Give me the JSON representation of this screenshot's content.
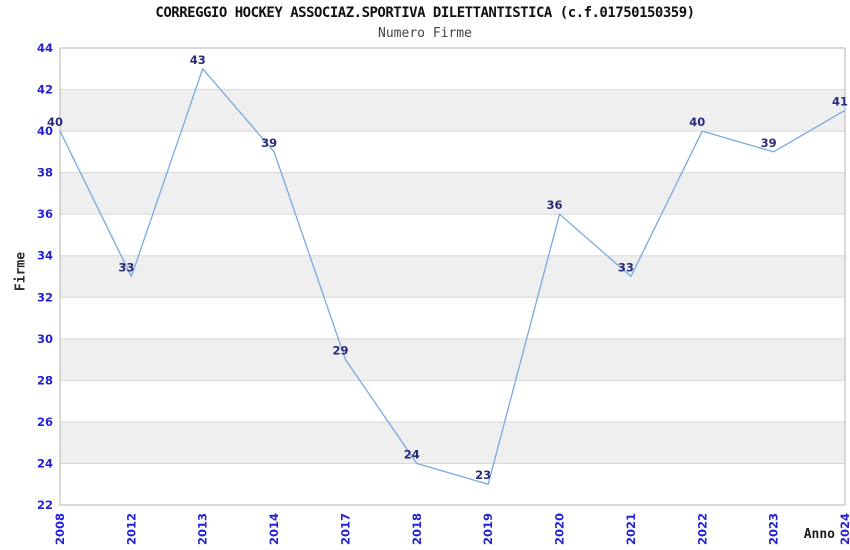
{
  "chart_data": {
    "type": "line",
    "title": "CORREGGIO HOCKEY ASSOCIAZ.SPORTIVA DILETTANTISTICA (c.f.01750150359)",
    "subtitle": "Numero Firme",
    "xlabel": "Anno",
    "ylabel": "Firme",
    "categories": [
      "2008",
      "2012",
      "2013",
      "2014",
      "2017",
      "2018",
      "2019",
      "2020",
      "2021",
      "2022",
      "2023",
      "2024"
    ],
    "values": [
      40,
      33,
      43,
      39,
      29,
      24,
      23,
      36,
      33,
      40,
      39,
      41
    ],
    "ylim": [
      22,
      44
    ],
    "ytick_step": 2,
    "grid": true,
    "legend": "none",
    "colors": {
      "line": "#7aa9e2",
      "band_white": "#ffffff",
      "band_gray": "#efefef",
      "gridline": "#d8d8d8",
      "plot_border": "#b4b4b4",
      "tick_label": "#2222d4",
      "point_label": "#2a2a7e",
      "title": "#111111",
      "subtitle": "#454545",
      "axis_title": "#1c1c1c"
    }
  }
}
